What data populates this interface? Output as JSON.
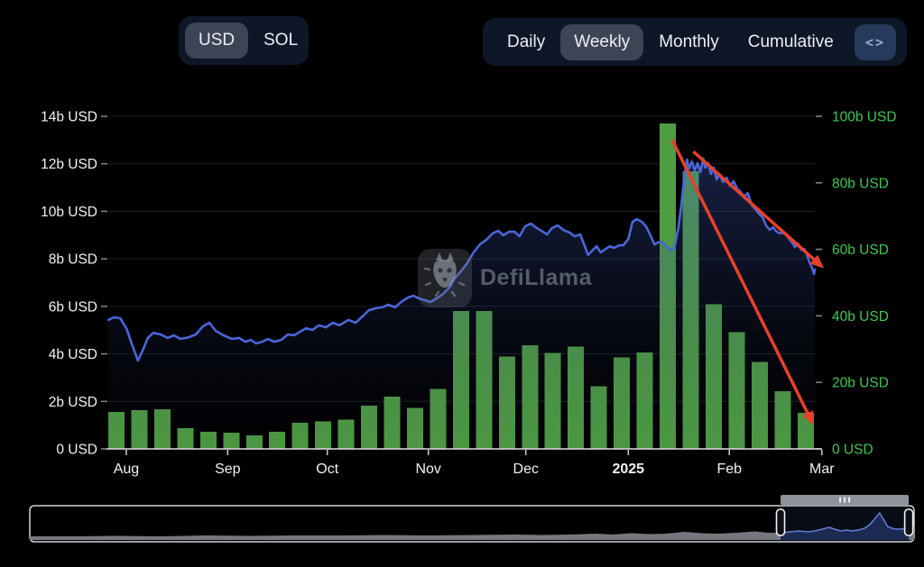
{
  "header": {
    "currency": {
      "options": [
        "USD",
        "SOL"
      ],
      "selected": "USD"
    },
    "interval": {
      "options": [
        "Daily",
        "Weekly",
        "Monthly",
        "Cumulative"
      ],
      "selected": "Weekly"
    },
    "embed_button": "<>"
  },
  "watermark": "DefiLlama",
  "chart_data": {
    "type": [
      "bar",
      "line"
    ],
    "title": "",
    "left_axis": {
      "unit": "USD",
      "ticks": [
        "14b USD",
        "12b USD",
        "10b USD",
        "8b USD",
        "6b USD",
        "4b USD",
        "2b USD",
        "0 USD"
      ],
      "range_b": [
        0,
        14
      ],
      "maps_to": "line",
      "color": "#f2f2f2"
    },
    "right_axis": {
      "unit": "USD",
      "ticks": [
        "100b USD",
        "80b USD",
        "60b USD",
        "40b USD",
        "20b USD",
        "0 USD"
      ],
      "range_b": [
        0,
        100
      ],
      "maps_to": "bars",
      "color": "#3cc653"
    },
    "x_axis": {
      "labels": [
        "Aug",
        "Sep",
        "Oct",
        "Nov",
        "Dec",
        "2025",
        "Feb",
        "Mar"
      ],
      "positions": [
        0.0255,
        0.169,
        0.31,
        0.453,
        0.591,
        0.736,
        0.879,
        1.01
      ],
      "bold_label": "2025"
    },
    "bars": {
      "name": "weekly-volume-b-usd",
      "values": [
        11.1,
        11.7,
        11.9,
        6.2,
        5.1,
        4.9,
        4.1,
        5.1,
        7.8,
        8.2,
        8.8,
        13,
        15.7,
        12.3,
        18,
        41.5,
        41.5,
        27.8,
        31.1,
        28.8,
        30.8,
        18.9,
        27.5,
        29,
        97.8,
        83.5,
        43.5,
        35.1,
        26.1,
        17.3,
        10.8
      ]
    },
    "line": {
      "name": "tvl-b-usd",
      "points": [
        [
          0,
          5.43
        ],
        [
          0.008,
          5.54
        ],
        [
          0.017,
          5.5
        ],
        [
          0.026,
          5.05
        ],
        [
          0.034,
          4.36
        ],
        [
          0.042,
          3.72
        ],
        [
          0.049,
          4.17
        ],
        [
          0.056,
          4.67
        ],
        [
          0.064,
          4.89
        ],
        [
          0.074,
          4.82
        ],
        [
          0.084,
          4.67
        ],
        [
          0.093,
          4.78
        ],
        [
          0.102,
          4.63
        ],
        [
          0.114,
          4.7
        ],
        [
          0.124,
          4.82
        ],
        [
          0.134,
          5.16
        ],
        [
          0.143,
          5.31
        ],
        [
          0.152,
          4.97
        ],
        [
          0.163,
          4.78
        ],
        [
          0.175,
          4.63
        ],
        [
          0.185,
          4.67
        ],
        [
          0.194,
          4.51
        ],
        [
          0.202,
          4.59
        ],
        [
          0.209,
          4.44
        ],
        [
          0.218,
          4.51
        ],
        [
          0.226,
          4.63
        ],
        [
          0.235,
          4.51
        ],
        [
          0.245,
          4.59
        ],
        [
          0.254,
          4.82
        ],
        [
          0.263,
          4.78
        ],
        [
          0.271,
          4.93
        ],
        [
          0.28,
          5.08
        ],
        [
          0.289,
          5.01
        ],
        [
          0.298,
          5.2
        ],
        [
          0.308,
          5.12
        ],
        [
          0.318,
          5.31
        ],
        [
          0.327,
          5.2
        ],
        [
          0.34,
          5.43
        ],
        [
          0.35,
          5.31
        ],
        [
          0.36,
          5.58
        ],
        [
          0.369,
          5.84
        ],
        [
          0.378,
          5.92
        ],
        [
          0.388,
          5.96
        ],
        [
          0.396,
          6.07
        ],
        [
          0.406,
          5.96
        ],
        [
          0.416,
          6.22
        ],
        [
          0.424,
          6.37
        ],
        [
          0.432,
          6.45
        ],
        [
          0.439,
          6.34
        ],
        [
          0.448,
          6.26
        ],
        [
          0.456,
          6.18
        ],
        [
          0.465,
          6.34
        ],
        [
          0.474,
          6.53
        ],
        [
          0.483,
          6.79
        ],
        [
          0.49,
          7.17
        ],
        [
          0.499,
          7.47
        ],
        [
          0.508,
          7.82
        ],
        [
          0.517,
          8.27
        ],
        [
          0.526,
          8.61
        ],
        [
          0.535,
          8.8
        ],
        [
          0.544,
          9.07
        ],
        [
          0.552,
          9.18
        ],
        [
          0.559,
          8.99
        ],
        [
          0.567,
          9.14
        ],
        [
          0.575,
          9.14
        ],
        [
          0.582,
          8.95
        ],
        [
          0.59,
          9.37
        ],
        [
          0.598,
          9.48
        ],
        [
          0.605,
          9.33
        ],
        [
          0.613,
          9.18
        ],
        [
          0.621,
          9.03
        ],
        [
          0.628,
          9.29
        ],
        [
          0.636,
          9.41
        ],
        [
          0.644,
          9.22
        ],
        [
          0.653,
          9.1
        ],
        [
          0.66,
          8.95
        ],
        [
          0.668,
          9.03
        ],
        [
          0.674,
          8.57
        ],
        [
          0.679,
          8.16
        ],
        [
          0.685,
          8.35
        ],
        [
          0.691,
          8.53
        ],
        [
          0.697,
          8.27
        ],
        [
          0.704,
          8.42
        ],
        [
          0.71,
          8.53
        ],
        [
          0.716,
          8.46
        ],
        [
          0.723,
          8.57
        ],
        [
          0.729,
          8.57
        ],
        [
          0.736,
          8.84
        ],
        [
          0.742,
          9.56
        ],
        [
          0.748,
          9.67
        ],
        [
          0.755,
          9.56
        ],
        [
          0.761,
          9.37
        ],
        [
          0.768,
          8.95
        ],
        [
          0.773,
          8.61
        ],
        [
          0.778,
          8.69
        ],
        [
          0.784,
          8.72
        ],
        [
          0.79,
          8.53
        ],
        [
          0.797,
          8.35
        ],
        [
          0.802,
          8.57
        ],
        [
          0.807,
          9.33
        ],
        [
          0.811,
          10.24
        ],
        [
          0.815,
          11.38
        ],
        [
          0.819,
          12.18
        ],
        [
          0.822,
          11.8
        ],
        [
          0.826,
          12.1
        ],
        [
          0.83,
          11.72
        ],
        [
          0.834,
          12.03
        ],
        [
          0.838,
          11.65
        ],
        [
          0.842,
          12.22
        ],
        [
          0.845,
          11.84
        ],
        [
          0.849,
          12.03
        ],
        [
          0.853,
          11.57
        ],
        [
          0.857,
          11.84
        ],
        [
          0.861,
          11.34
        ],
        [
          0.865,
          11.57
        ],
        [
          0.87,
          11.23
        ],
        [
          0.875,
          11.42
        ],
        [
          0.88,
          11.08
        ],
        [
          0.885,
          11.27
        ],
        [
          0.89,
          10.96
        ],
        [
          0.895,
          10.81
        ],
        [
          0.9,
          10.62
        ],
        [
          0.905,
          10.77
        ],
        [
          0.911,
          10.24
        ],
        [
          0.916,
          10.09
        ],
        [
          0.921,
          9.9
        ],
        [
          0.926,
          9.75
        ],
        [
          0.931,
          9.41
        ],
        [
          0.936,
          9.22
        ],
        [
          0.941,
          9.33
        ],
        [
          0.946,
          9.14
        ],
        [
          0.951,
          9.07
        ],
        [
          0.957,
          9.1
        ],
        [
          0.962,
          8.91
        ],
        [
          0.967,
          8.72
        ],
        [
          0.972,
          8.5
        ],
        [
          0.976,
          8.65
        ],
        [
          0.981,
          8.38
        ],
        [
          0.985,
          8.42
        ],
        [
          0.989,
          8.16
        ],
        [
          0.992,
          7.89
        ],
        [
          0.996,
          7.63
        ],
        [
          0.999,
          7.36
        ],
        [
          1,
          7.55
        ]
      ]
    },
    "annotations": {
      "arrows": [
        {
          "from": [
            0.828,
            0.118
          ],
          "to": [
            1.009,
            0.457
          ]
        },
        {
          "from": [
            0.798,
            0.083
          ],
          "to": [
            0.996,
            0.92
          ]
        }
      ],
      "color": "#e8402a"
    }
  },
  "minimap": {
    "silhouette": [
      [
        0,
        4
      ],
      [
        0.05,
        4
      ],
      [
        0.1,
        4.5
      ],
      [
        0.15,
        4
      ],
      [
        0.2,
        5
      ],
      [
        0.25,
        4.5
      ],
      [
        0.3,
        5
      ],
      [
        0.35,
        5
      ],
      [
        0.4,
        5.5
      ],
      [
        0.45,
        5
      ],
      [
        0.5,
        5.5
      ],
      [
        0.55,
        6
      ],
      [
        0.58,
        5.5
      ],
      [
        0.61,
        6
      ],
      [
        0.64,
        7
      ],
      [
        0.66,
        6
      ],
      [
        0.68,
        7.5
      ],
      [
        0.7,
        6.5
      ],
      [
        0.72,
        7
      ],
      [
        0.74,
        9
      ],
      [
        0.76,
        7.5
      ],
      [
        0.78,
        7
      ],
      [
        0.8,
        8
      ],
      [
        0.82,
        9.5
      ],
      [
        0.835,
        8
      ],
      [
        0.849,
        8
      ],
      [
        0.86,
        9
      ],
      [
        0.87,
        10
      ],
      [
        0.88,
        9
      ],
      [
        0.888,
        10
      ],
      [
        0.896,
        12
      ],
      [
        0.904,
        14
      ],
      [
        0.91,
        12
      ],
      [
        0.917,
        10
      ],
      [
        0.924,
        11
      ],
      [
        0.93,
        10
      ],
      [
        0.937,
        11
      ],
      [
        0.944,
        13
      ],
      [
        0.95,
        17
      ],
      [
        0.956,
        24
      ],
      [
        0.961,
        30
      ],
      [
        0.966,
        22
      ],
      [
        0.97,
        15
      ],
      [
        0.975,
        13
      ],
      [
        0.98,
        12
      ],
      [
        0.985,
        12
      ],
      [
        0.99,
        13
      ],
      [
        0.995,
        15
      ],
      [
        1,
        16
      ]
    ],
    "selection": {
      "start": 0.849,
      "end": 0.994
    }
  },
  "colors": {
    "background": "#000000",
    "bar_green": "#4f9d43",
    "axis_green": "#3cc653",
    "line_blue": "#4a66d9",
    "arrow_red": "#e8402a",
    "grid": "#1e1e1e",
    "axis_line": "#dddddd",
    "text": "#f2f2f2",
    "header_bg": "#0e1728",
    "pill_bg": "#3d4456"
  }
}
